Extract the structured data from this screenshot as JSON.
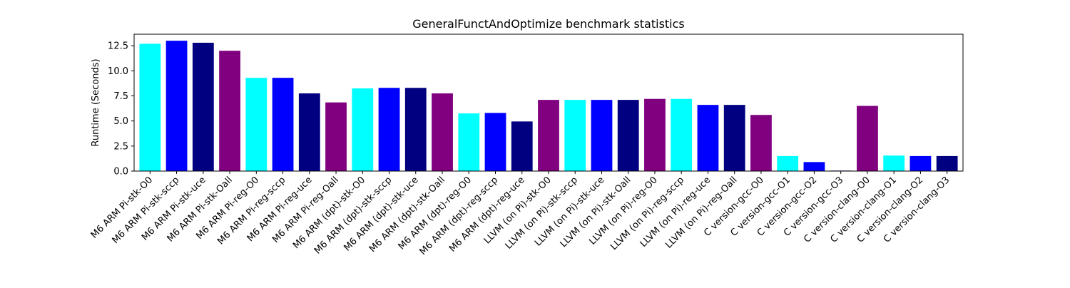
{
  "chart_data": {
    "type": "bar",
    "title": "GeneralFunctAndOptimize benchmark statistics",
    "xlabel": "",
    "ylabel": "Runtime (Seconds)",
    "ylim": [
      0,
      13.65
    ],
    "yticks": [
      0.0,
      2.5,
      5.0,
      7.5,
      10.0,
      12.5
    ],
    "ytick_labels": [
      "0.0",
      "2.5",
      "5.0",
      "7.5",
      "10.0",
      "12.5"
    ],
    "grid": false,
    "legend": "none",
    "categories": [
      "M6 ARM Pi-stk-O0",
      "M6 ARM Pi-stk-sccp",
      "M6 ARM Pi-stk-uce",
      "M6 ARM Pi-stk-Oall",
      "M6 ARM Pi-reg-O0",
      "M6 ARM Pi-reg-sccp",
      "M6 ARM Pi-reg-uce",
      "M6 ARM Pi-reg-Oall",
      "M6 ARM (dpt)-stk-O0",
      "M6 ARM (dpt)-stk-sccp",
      "M6 ARM (dpt)-stk-uce",
      "M6 ARM (dpt)-stk-Oall",
      "M6 ARM (dpt)-reg-O0",
      "M6 ARM (dpt)-reg-sccp",
      "M6 ARM (dpt)-reg-uce",
      "LLVM (on Pi)-stk-O0",
      "LLVM (on Pi)-stk-sccp",
      "LLVM (on Pi)-stk-uce",
      "LLVM (on Pi)-stk-Oall",
      "LLVM (on Pi)-reg-O0",
      "LLVM (on Pi)-reg-sccp",
      "LLVM (on Pi)-reg-uce",
      "LLVM (on Pi)-reg-Oall",
      "C version-gcc-O0",
      "C version-gcc-O1",
      "C version-gcc-O2",
      "C version-gcc-O3",
      "C version-clang-O0",
      "C version-clang-O1",
      "C version-clang-O2",
      "C version-clang-O3"
    ],
    "values": [
      12.7,
      13.0,
      12.8,
      12.0,
      9.3,
      9.3,
      7.75,
      6.85,
      8.25,
      8.3,
      8.3,
      7.75,
      5.75,
      5.8,
      4.95,
      7.1,
      7.1,
      7.1,
      7.1,
      7.2,
      7.2,
      6.6,
      6.6,
      5.6,
      1.5,
      0.9,
      0.05,
      6.5,
      1.55,
      1.5,
      1.5
    ],
    "bar_colors": [
      "#00ffff",
      "#0000ff",
      "#000080",
      "#800080",
      "#00ffff",
      "#0000ff",
      "#000080",
      "#800080",
      "#00ffff",
      "#0000ff",
      "#000080",
      "#800080",
      "#00ffff",
      "#0000ff",
      "#000080",
      "#800080",
      "#00ffff",
      "#0000ff",
      "#000080",
      "#800080",
      "#00ffff",
      "#0000ff",
      "#000080",
      "#800080",
      "#00ffff",
      "#0000ff",
      "#000080",
      "#800080",
      "#00ffff",
      "#0000ff",
      "#000080"
    ]
  }
}
